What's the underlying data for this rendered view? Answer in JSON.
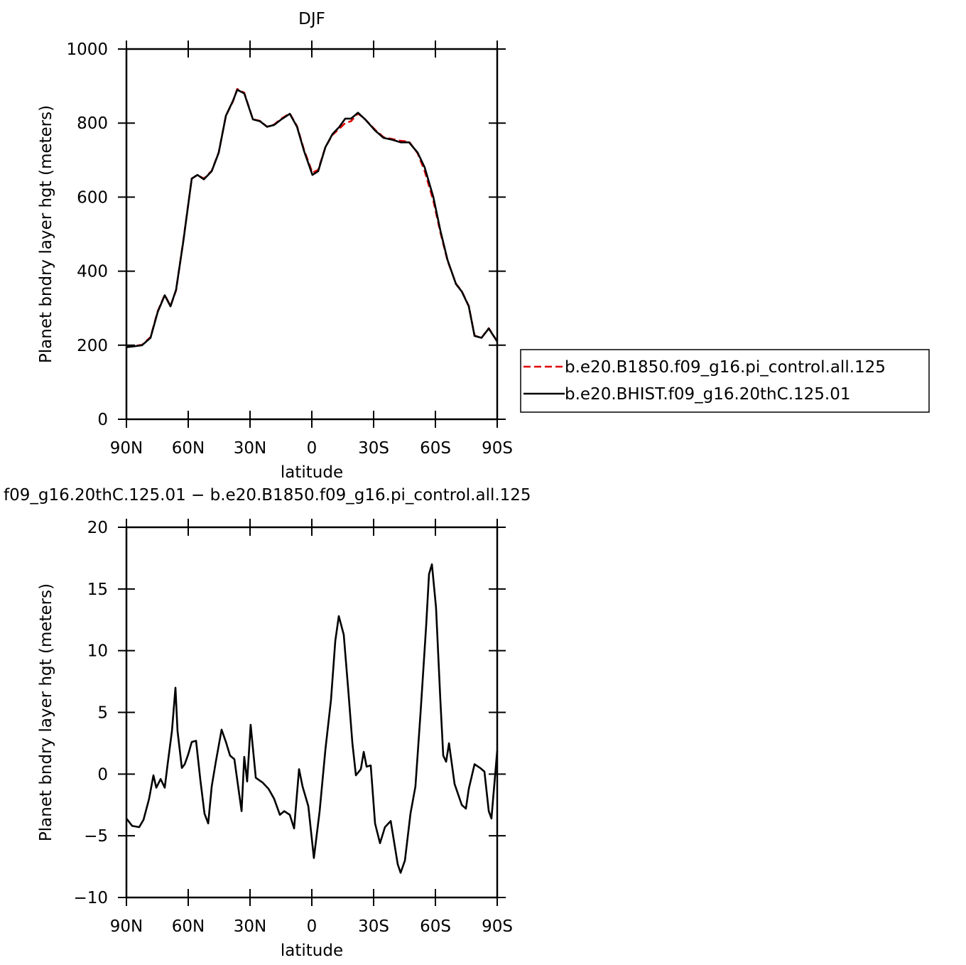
{
  "chart_data": [
    {
      "type": "line",
      "title": "DJF",
      "xlabel": "latitude",
      "ylabel": "Planet bndry layer hgt (meters)",
      "xlim": [
        90,
        -90
      ],
      "xticks": [
        {
          "value": 90,
          "label": "90N"
        },
        {
          "value": 60,
          "label": "60N"
        },
        {
          "value": 30,
          "label": "30N"
        },
        0,
        {
          "value": -30,
          "label": "30S"
        },
        {
          "value": -60,
          "label": "60S"
        },
        {
          "value": -90,
          "label": "90S"
        }
      ],
      "ylim": [
        0,
        1000
      ],
      "yticks": [
        0,
        200,
        400,
        600,
        800,
        1000
      ],
      "legend": "right",
      "x": [
        90,
        87.6,
        82.4,
        78.3,
        74.8,
        71.4,
        68.6,
        65.9,
        62.4,
        58.3,
        55.5,
        52.4,
        48.6,
        45.2,
        41.7,
        38.3,
        36.2,
        32.8,
        28.6,
        25.2,
        21.7,
        18.3,
        14.8,
        10.7,
        7.2,
        3.8,
        -0.3,
        -3.1,
        -6.6,
        -10,
        -13.4,
        -16.2,
        -19,
        -22.4,
        -25.9,
        -30.7,
        -34.8,
        -39,
        -43.1,
        -47.2,
        -51.4,
        -54.8,
        -59,
        -62.4,
        -65.9,
        -70,
        -72.8,
        -76.2,
        -79,
        -82.4,
        -85.9,
        -90
      ],
      "series": [
        {
          "name": "b.e20.B1850.f09_g16.pi_control.all.125",
          "color": "#e00000",
          "linestyle": "dashed",
          "values": [
            196,
            197,
            201,
            222,
            292,
            336,
            306,
            348,
            482,
            650,
            660,
            650,
            671,
            721,
            820,
            858,
            892,
            882,
            810,
            806,
            790,
            796,
            812,
            826,
            792,
            728,
            666,
            674,
            735,
            768,
            785,
            800,
            805,
            826,
            810,
            782,
            762,
            757,
            752,
            750,
            718,
            670,
            590,
            505,
            428,
            366,
            346,
            306,
            226,
            220,
            246,
            210
          ]
        },
        {
          "name": "b.e20.BHIST.f09_g16.20thC.125.01",
          "color": "#000000",
          "linestyle": "solid",
          "values": [
            195,
            196,
            200,
            220,
            290,
            335,
            305,
            350,
            480,
            650,
            660,
            648,
            670,
            720,
            820,
            860,
            890,
            880,
            810,
            805,
            790,
            795,
            810,
            825,
            790,
            725,
            660,
            670,
            735,
            770,
            790,
            812,
            812,
            828,
            810,
            780,
            760,
            755,
            748,
            748,
            720,
            680,
            600,
            510,
            430,
            365,
            345,
            305,
            225,
            220,
            245,
            210
          ]
        }
      ]
    },
    {
      "type": "line",
      "title": "f09_g16.20thC.125.01 − b.e20.B1850.f09_g16.pi_control.all.125",
      "xlabel": "latitude",
      "ylabel": "Planet bndry layer hgt (meters)",
      "xlim": [
        90,
        -90
      ],
      "xticks": [
        {
          "value": 90,
          "label": "90N"
        },
        {
          "value": 60,
          "label": "60N"
        },
        {
          "value": 30,
          "label": "30N"
        },
        0,
        {
          "value": -30,
          "label": "30S"
        },
        {
          "value": -60,
          "label": "60S"
        },
        {
          "value": -90,
          "label": "90S"
        }
      ],
      "ylim": [
        -10,
        20
      ],
      "yticks": [
        {
          "value": -10,
          "label": "−10"
        },
        {
          "value": -5,
          "label": "−5"
        },
        0,
        5,
        10,
        15,
        20
      ],
      "x": [
        90,
        87.2,
        83.8,
        81.7,
        79,
        76.9,
        75.5,
        73.4,
        71.4,
        70,
        67.9,
        66.2,
        65.2,
        63.1,
        61.7,
        60,
        58.3,
        56.2,
        54.1,
        52.1,
        50.3,
        48.6,
        46.6,
        43.8,
        41.7,
        39.7,
        37.6,
        34.1,
        32.8,
        31.4,
        29.7,
        27.2,
        23.8,
        21,
        18.3,
        15.5,
        13.4,
        10.7,
        8.6,
        6.2,
        4.5,
        1.7,
        -1,
        -3.8,
        -6.6,
        -9.3,
        -11.4,
        -13.1,
        -15.5,
        -17.6,
        -19.7,
        -21.4,
        -23.8,
        -25.2,
        -26.6,
        -28.6,
        -30.7,
        -33.1,
        -35.5,
        -38.3,
        -41.7,
        -43.1,
        -45.2,
        -47.9,
        -50.3,
        -52.8,
        -55.5,
        -56.9,
        -58.3,
        -60.3,
        -62.4,
        -63.8,
        -65.2,
        -66.6,
        -69.3,
        -72.8,
        -74.8,
        -76.2,
        -79,
        -81.7,
        -83.8,
        -85.9,
        -87.2,
        -90
      ],
      "series": [
        {
          "color": "#000000",
          "values": [
            -3.6,
            -4.2,
            -4.3,
            -3.7,
            -2.0,
            -0.1,
            -1.1,
            -0.4,
            -1.1,
            0.8,
            3.5,
            7.0,
            3.5,
            0.5,
            0.8,
            1.6,
            2.6,
            2.7,
            -0.5,
            -3.2,
            -4.0,
            -1.0,
            1.0,
            3.6,
            2.6,
            1.5,
            1.2,
            -3.0,
            1.4,
            -0.6,
            4.0,
            -0.3,
            -0.7,
            -1.2,
            -2.0,
            -3.3,
            -3.0,
            -3.3,
            -4.4,
            0.4,
            -1.0,
            -2.6,
            -6.8,
            -3.0,
            2.0,
            6.0,
            10.8,
            12.8,
            11.3,
            7.0,
            2.5,
            -0.1,
            0.4,
            1.8,
            0.6,
            0.7,
            -4.0,
            -5.6,
            -4.3,
            -3.8,
            -7.3,
            -8.0,
            -7.0,
            -3.2,
            -1.0,
            5.0,
            12.0,
            16.2,
            17.0,
            13.5,
            6.0,
            1.5,
            1.0,
            2.5,
            -0.8,
            -2.5,
            -2.8,
            -1.2,
            0.8,
            0.5,
            0.2,
            -3.0,
            -3.6,
            1.9
          ]
        }
      ]
    }
  ]
}
